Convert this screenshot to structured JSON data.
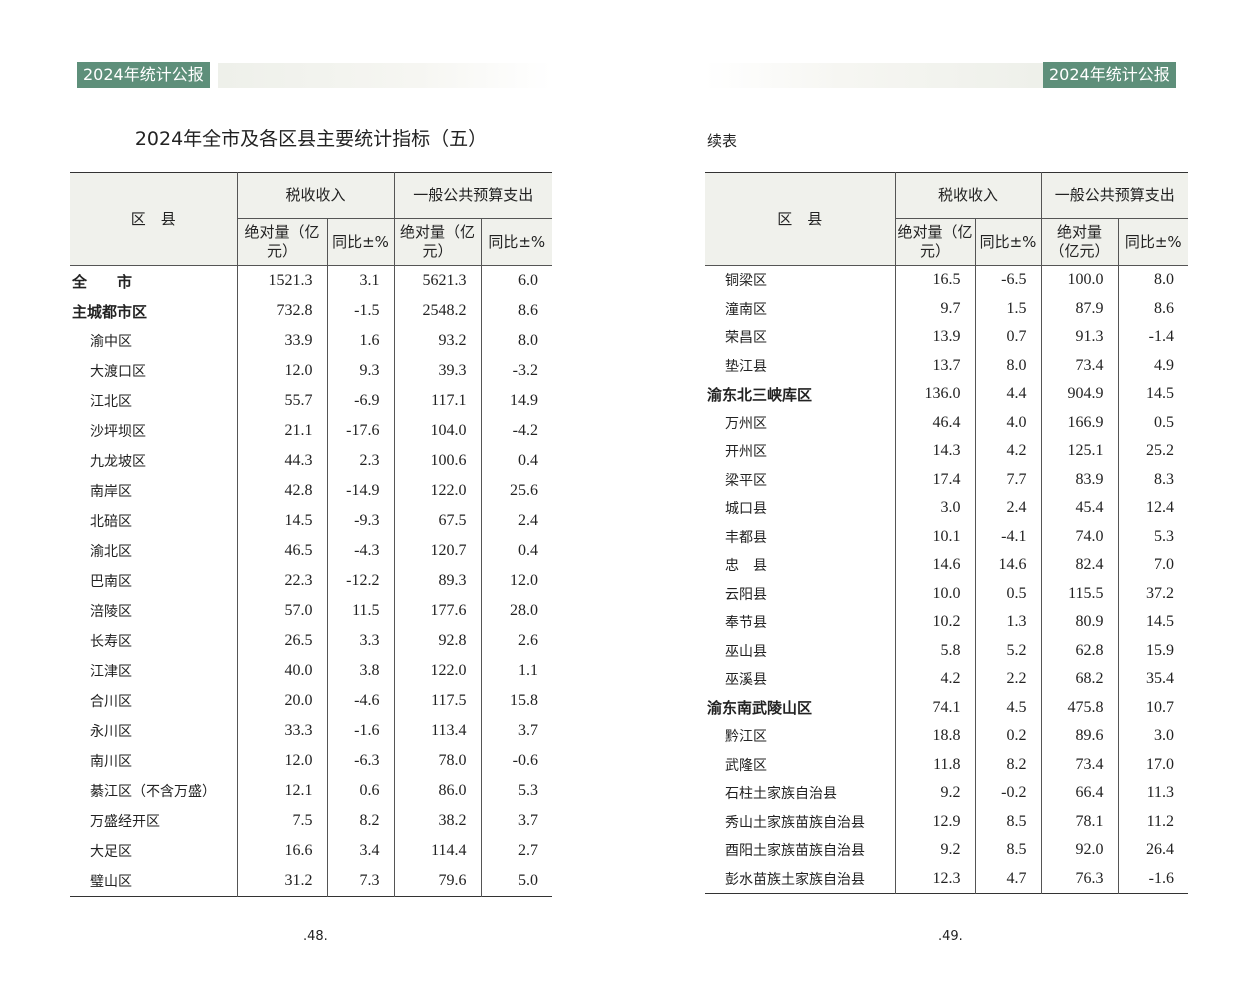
{
  "header": {
    "tag": "2024年统计公报",
    "theme_color": "#5e8f7a"
  },
  "left": {
    "title": "2024年全市及各区县主要统计指标（五）",
    "page_number": ".48.",
    "rows": [
      {
        "name": "全　　市",
        "level": 0,
        "v": [
          "1521.3",
          "3.1",
          "5621.3",
          "6.0"
        ]
      },
      {
        "name": "主城都市区",
        "level": 0,
        "v": [
          "732.8",
          "-1.5",
          "2548.2",
          "8.6"
        ]
      },
      {
        "name": "渝中区",
        "level": 1,
        "v": [
          "33.9",
          "1.6",
          "93.2",
          "8.0"
        ]
      },
      {
        "name": "大渡口区",
        "level": 1,
        "v": [
          "12.0",
          "9.3",
          "39.3",
          "-3.2"
        ]
      },
      {
        "name": "江北区",
        "level": 1,
        "v": [
          "55.7",
          "-6.9",
          "117.1",
          "14.9"
        ]
      },
      {
        "name": "沙坪坝区",
        "level": 1,
        "v": [
          "21.1",
          "-17.6",
          "104.0",
          "-4.2"
        ]
      },
      {
        "name": "九龙坡区",
        "level": 1,
        "v": [
          "44.3",
          "2.3",
          "100.6",
          "0.4"
        ]
      },
      {
        "name": "南岸区",
        "level": 1,
        "v": [
          "42.8",
          "-14.9",
          "122.0",
          "25.6"
        ]
      },
      {
        "name": "北碚区",
        "level": 1,
        "v": [
          "14.5",
          "-9.3",
          "67.5",
          "2.4"
        ]
      },
      {
        "name": "渝北区",
        "level": 1,
        "v": [
          "46.5",
          "-4.3",
          "120.7",
          "0.4"
        ]
      },
      {
        "name": "巴南区",
        "level": 1,
        "v": [
          "22.3",
          "-12.2",
          "89.3",
          "12.0"
        ]
      },
      {
        "name": "涪陵区",
        "level": 1,
        "v": [
          "57.0",
          "11.5",
          "177.6",
          "28.0"
        ]
      },
      {
        "name": "长寿区",
        "level": 1,
        "v": [
          "26.5",
          "3.3",
          "92.8",
          "2.6"
        ]
      },
      {
        "name": "江津区",
        "level": 1,
        "v": [
          "40.0",
          "3.8",
          "122.0",
          "1.1"
        ]
      },
      {
        "name": "合川区",
        "level": 1,
        "v": [
          "20.0",
          "-4.6",
          "117.5",
          "15.8"
        ]
      },
      {
        "name": "永川区",
        "level": 1,
        "v": [
          "33.3",
          "-1.6",
          "113.4",
          "3.7"
        ]
      },
      {
        "name": "南川区",
        "level": 1,
        "v": [
          "12.0",
          "-6.3",
          "78.0",
          "-0.6"
        ]
      },
      {
        "name": "綦江区（不含万盛）",
        "level": 1,
        "v": [
          "12.1",
          "0.6",
          "86.0",
          "5.3"
        ]
      },
      {
        "name": "万盛经开区",
        "level": 1,
        "v": [
          "7.5",
          "8.2",
          "38.2",
          "3.7"
        ]
      },
      {
        "name": "大足区",
        "level": 1,
        "v": [
          "16.6",
          "3.4",
          "114.4",
          "2.7"
        ]
      },
      {
        "name": "璧山区",
        "level": 1,
        "v": [
          "31.2",
          "7.3",
          "79.6",
          "5.0"
        ]
      }
    ]
  },
  "right": {
    "continued_label": "续表",
    "page_number": ".49.",
    "rows": [
      {
        "name": "铜梁区",
        "level": 1,
        "v": [
          "16.5",
          "-6.5",
          "100.0",
          "8.0"
        ]
      },
      {
        "name": "潼南区",
        "level": 1,
        "v": [
          "9.7",
          "1.5",
          "87.9",
          "8.6"
        ]
      },
      {
        "name": "荣昌区",
        "level": 1,
        "v": [
          "13.9",
          "0.7",
          "91.3",
          "-1.4"
        ]
      },
      {
        "name": "垫江县",
        "level": 1,
        "v": [
          "13.7",
          "8.0",
          "73.4",
          "4.9"
        ]
      },
      {
        "name": "渝东北三峡库区",
        "level": 0,
        "v": [
          "136.0",
          "4.4",
          "904.9",
          "14.5"
        ]
      },
      {
        "name": "万州区",
        "level": 1,
        "v": [
          "46.4",
          "4.0",
          "166.9",
          "0.5"
        ]
      },
      {
        "name": "开州区",
        "level": 1,
        "v": [
          "14.3",
          "4.2",
          "125.1",
          "25.2"
        ]
      },
      {
        "name": "梁平区",
        "level": 1,
        "v": [
          "17.4",
          "7.7",
          "83.9",
          "8.3"
        ]
      },
      {
        "name": "城口县",
        "level": 1,
        "v": [
          "3.0",
          "2.4",
          "45.4",
          "12.4"
        ]
      },
      {
        "name": "丰都县",
        "level": 1,
        "v": [
          "10.1",
          "-4.1",
          "74.0",
          "5.3"
        ]
      },
      {
        "name": "忠　县",
        "level": 1,
        "v": [
          "14.6",
          "14.6",
          "82.4",
          "7.0"
        ]
      },
      {
        "name": "云阳县",
        "level": 1,
        "v": [
          "10.0",
          "0.5",
          "115.5",
          "37.2"
        ]
      },
      {
        "name": "奉节县",
        "level": 1,
        "v": [
          "10.2",
          "1.3",
          "80.9",
          "14.5"
        ]
      },
      {
        "name": "巫山县",
        "level": 1,
        "v": [
          "5.8",
          "5.2",
          "62.8",
          "15.9"
        ]
      },
      {
        "name": "巫溪县",
        "level": 1,
        "v": [
          "4.2",
          "2.2",
          "68.2",
          "35.4"
        ]
      },
      {
        "name": "渝东南武陵山区",
        "level": 0,
        "v": [
          "74.1",
          "4.5",
          "475.8",
          "10.7"
        ]
      },
      {
        "name": "黔江区",
        "level": 1,
        "v": [
          "18.8",
          "0.2",
          "89.6",
          "3.0"
        ]
      },
      {
        "name": "武隆区",
        "level": 1,
        "v": [
          "11.8",
          "8.2",
          "73.4",
          "17.0"
        ]
      },
      {
        "name": "石柱土家族自治县",
        "level": 1,
        "v": [
          "9.2",
          "-0.2",
          "66.4",
          "11.3"
        ]
      },
      {
        "name": "秀山土家族苗族自治县",
        "level": 1,
        "v": [
          "12.9",
          "8.5",
          "78.1",
          "11.2"
        ]
      },
      {
        "name": "酉阳土家族苗族自治县",
        "level": 1,
        "v": [
          "9.2",
          "8.5",
          "92.0",
          "26.4"
        ]
      },
      {
        "name": "彭水苗族土家族自治县",
        "level": 1,
        "v": [
          "12.3",
          "4.7",
          "76.3",
          "-1.6"
        ]
      }
    ]
  },
  "columns": {
    "region": "区　县",
    "tax": "税收收入",
    "spend": "一般公共预算支出",
    "abs": "绝对量（亿元）",
    "yoy": "同比±%"
  }
}
